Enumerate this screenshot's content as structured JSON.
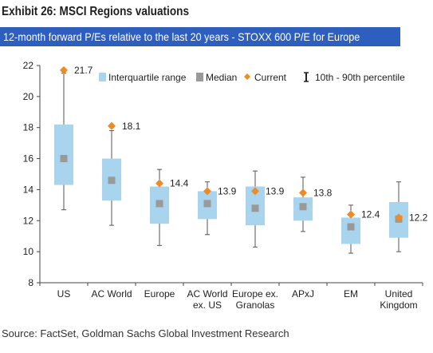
{
  "title": "Exhibit 26: MSCI Regions valuations",
  "subtitle": "12-month forward P/Es relative to the last 20 years - STOXX 600 P/E for Europe",
  "source": "Source: FactSet, Goldman Sachs Global Investment Research",
  "colors": {
    "iqr": "#a8d4ee",
    "median": "#999999",
    "current": "#f08a24",
    "whisker": "#555555",
    "subtitle_bg": "#2e5fbf"
  },
  "chart_data": {
    "type": "box",
    "ylim": [
      8,
      22
    ],
    "yticks": [
      8,
      10,
      12,
      14,
      16,
      18,
      20,
      22
    ],
    "grid": false,
    "legend_position": "top-right",
    "legend": [
      {
        "key": "iqr",
        "label": "Interquartile range"
      },
      {
        "key": "median",
        "label": "Median"
      },
      {
        "key": "current",
        "label": "Current"
      },
      {
        "key": "whisker",
        "label": "10th - 90th percentile"
      }
    ],
    "categories": [
      {
        "label": [
          "US"
        ],
        "p10": 12.7,
        "q1": 14.3,
        "median": 16.0,
        "q3": 18.2,
        "p90": 21.5,
        "current": 21.7,
        "current_label": "21.7"
      },
      {
        "label": [
          "AC World"
        ],
        "p10": 11.7,
        "q1": 13.3,
        "median": 14.6,
        "q3": 16.0,
        "p90": 17.8,
        "current": 18.1,
        "current_label": "18.1"
      },
      {
        "label": [
          "Europe"
        ],
        "p10": 10.4,
        "q1": 11.8,
        "median": 13.1,
        "q3": 14.2,
        "p90": 15.3,
        "current": 14.4,
        "current_label": "14.4"
      },
      {
        "label": [
          "AC World",
          "ex. US"
        ],
        "p10": 11.1,
        "q1": 12.1,
        "median": 13.1,
        "q3": 13.9,
        "p90": 14.5,
        "current": 13.9,
        "current_label": "13.9"
      },
      {
        "label": [
          "Europe ex.",
          "Granolas"
        ],
        "p10": 10.3,
        "q1": 11.7,
        "median": 12.8,
        "q3": 14.2,
        "p90": 15.2,
        "current": 13.9,
        "current_label": "13.9"
      },
      {
        "label": [
          "APxJ"
        ],
        "p10": 11.3,
        "q1": 12.0,
        "median": 12.9,
        "q3": 13.5,
        "p90": 14.8,
        "current": 13.8,
        "current_label": "13.8"
      },
      {
        "label": [
          "EM"
        ],
        "p10": 9.9,
        "q1": 10.5,
        "median": 11.6,
        "q3": 12.2,
        "p90": 13.0,
        "current": 12.4,
        "current_label": "12.4"
      },
      {
        "label": [
          "United",
          "Kingdom"
        ],
        "p10": 10.0,
        "q1": 10.9,
        "median": 12.1,
        "q3": 13.2,
        "p90": 14.5,
        "current": 12.2,
        "current_label": "12.2"
      }
    ]
  }
}
